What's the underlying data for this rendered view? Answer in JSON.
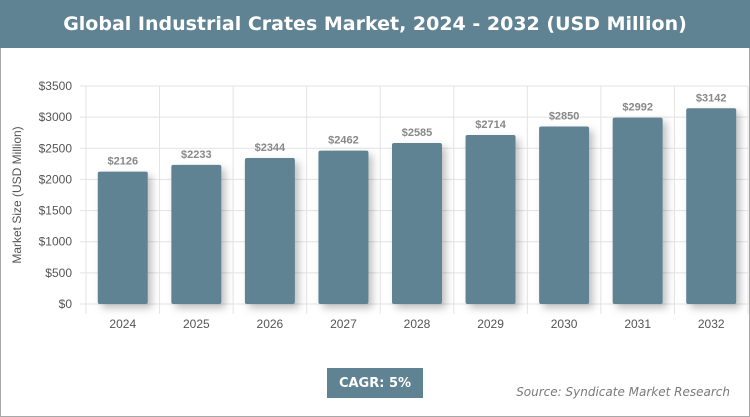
{
  "title": "Global Industrial Crates Market, 2024 - 2032 (USD Million)",
  "cagr_label": "CAGR: 5%",
  "source": "Source: Syndicate Market Research",
  "colors": {
    "bar": "#5f8393",
    "header": "#5f8393"
  },
  "chart_data": {
    "type": "bar",
    "title": "Global Industrial Crates Market, 2024 - 2032 (USD Million)",
    "xlabel": "",
    "ylabel": "Market Size (USD Million)",
    "categories": [
      "2024",
      "2025",
      "2026",
      "2027",
      "2028",
      "2029",
      "2030",
      "2031",
      "2032"
    ],
    "values": [
      2126,
      2233,
      2344,
      2462,
      2585,
      2714,
      2850,
      2992,
      3142
    ],
    "data_labels": [
      "$2126",
      "$2233",
      "$2344",
      "$2462",
      "$2585",
      "$2714",
      "$2850",
      "$2992",
      "$3142"
    ],
    "ylim": [
      0,
      3500
    ],
    "yticks": [
      0,
      500,
      1000,
      1500,
      2000,
      2500,
      3000,
      3500
    ],
    "ytick_labels": [
      "$0",
      "$500",
      "$1000",
      "$1500",
      "$2000",
      "$2500",
      "$3000",
      "$3500"
    ],
    "grid": true
  }
}
